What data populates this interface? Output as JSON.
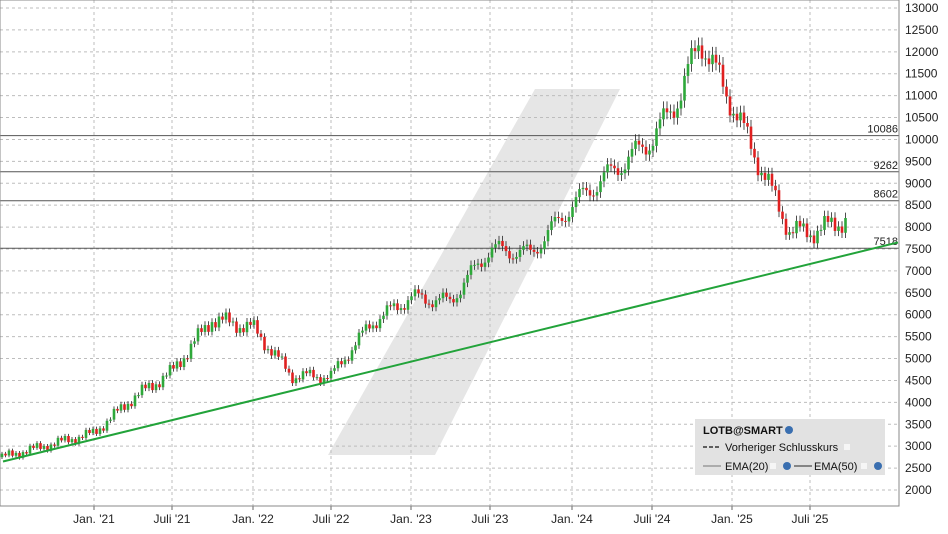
{
  "chart_data": {
    "type": "candlestick",
    "ylim": [
      1800,
      13100
    ],
    "y_ticks": [
      2000,
      2500,
      3000,
      3500,
      4000,
      4500,
      5000,
      5500,
      6000,
      6500,
      7000,
      7500,
      8000,
      8500,
      9000,
      9500,
      10000,
      10500,
      11000,
      11500,
      12000,
      12500,
      13000
    ],
    "x_ticks": [
      "Jan. '21",
      "Juli '21",
      "Jan. '22",
      "Juli '22",
      "Jan. '23",
      "Juli '23",
      "Jan. '24",
      "Juli '24",
      "Jan. '25",
      "Juli '25"
    ],
    "grid": true,
    "levels": [
      {
        "label": "10086",
        "value": 10086
      },
      {
        "label": "9262",
        "value": 9262
      },
      {
        "label": "8602",
        "value": 8602
      },
      {
        "label": "7518",
        "value": 7518
      }
    ],
    "trendline": {
      "start": [
        "Okt. '20",
        2650
      ],
      "end": [
        "Dez. '25",
        7650
      ],
      "color": "#22a33a"
    },
    "series": [
      {
        "name": "LOTB@SMART",
        "up_color": "#2ea83a",
        "down_color": "#e02020",
        "x": [
          "Okt. '20",
          "Jan. '21",
          "Apr. '21",
          "Juli '21",
          "Okt. '21",
          "Jan. '22",
          "Apr. '22",
          "Juli '22",
          "Okt. '22",
          "Jan. '23",
          "Apr. '23",
          "Juli '23",
          "Okt. '23",
          "Jan. '24",
          "Apr. '24",
          "Juli '24",
          "Sep. '24",
          "Okt. '24",
          "Jan. '25",
          "Apr. '25",
          "Juli '25",
          "Sep. '25"
        ],
        "close": [
          2750,
          3300,
          4100,
          4700,
          5900,
          5700,
          4600,
          4600,
          5800,
          6400,
          6300,
          7500,
          7400,
          8500,
          8900,
          10000,
          11000,
          12300,
          10800,
          7900,
          7900,
          8200
        ]
      }
    ],
    "legend": {
      "placement": "bottom-right",
      "symbol": "LOTB@SMART",
      "items": [
        "Vorheriger Schlusskurs",
        "EMA(20)",
        "EMA(50)"
      ]
    },
    "watermark_color": "#e6e6e6"
  }
}
